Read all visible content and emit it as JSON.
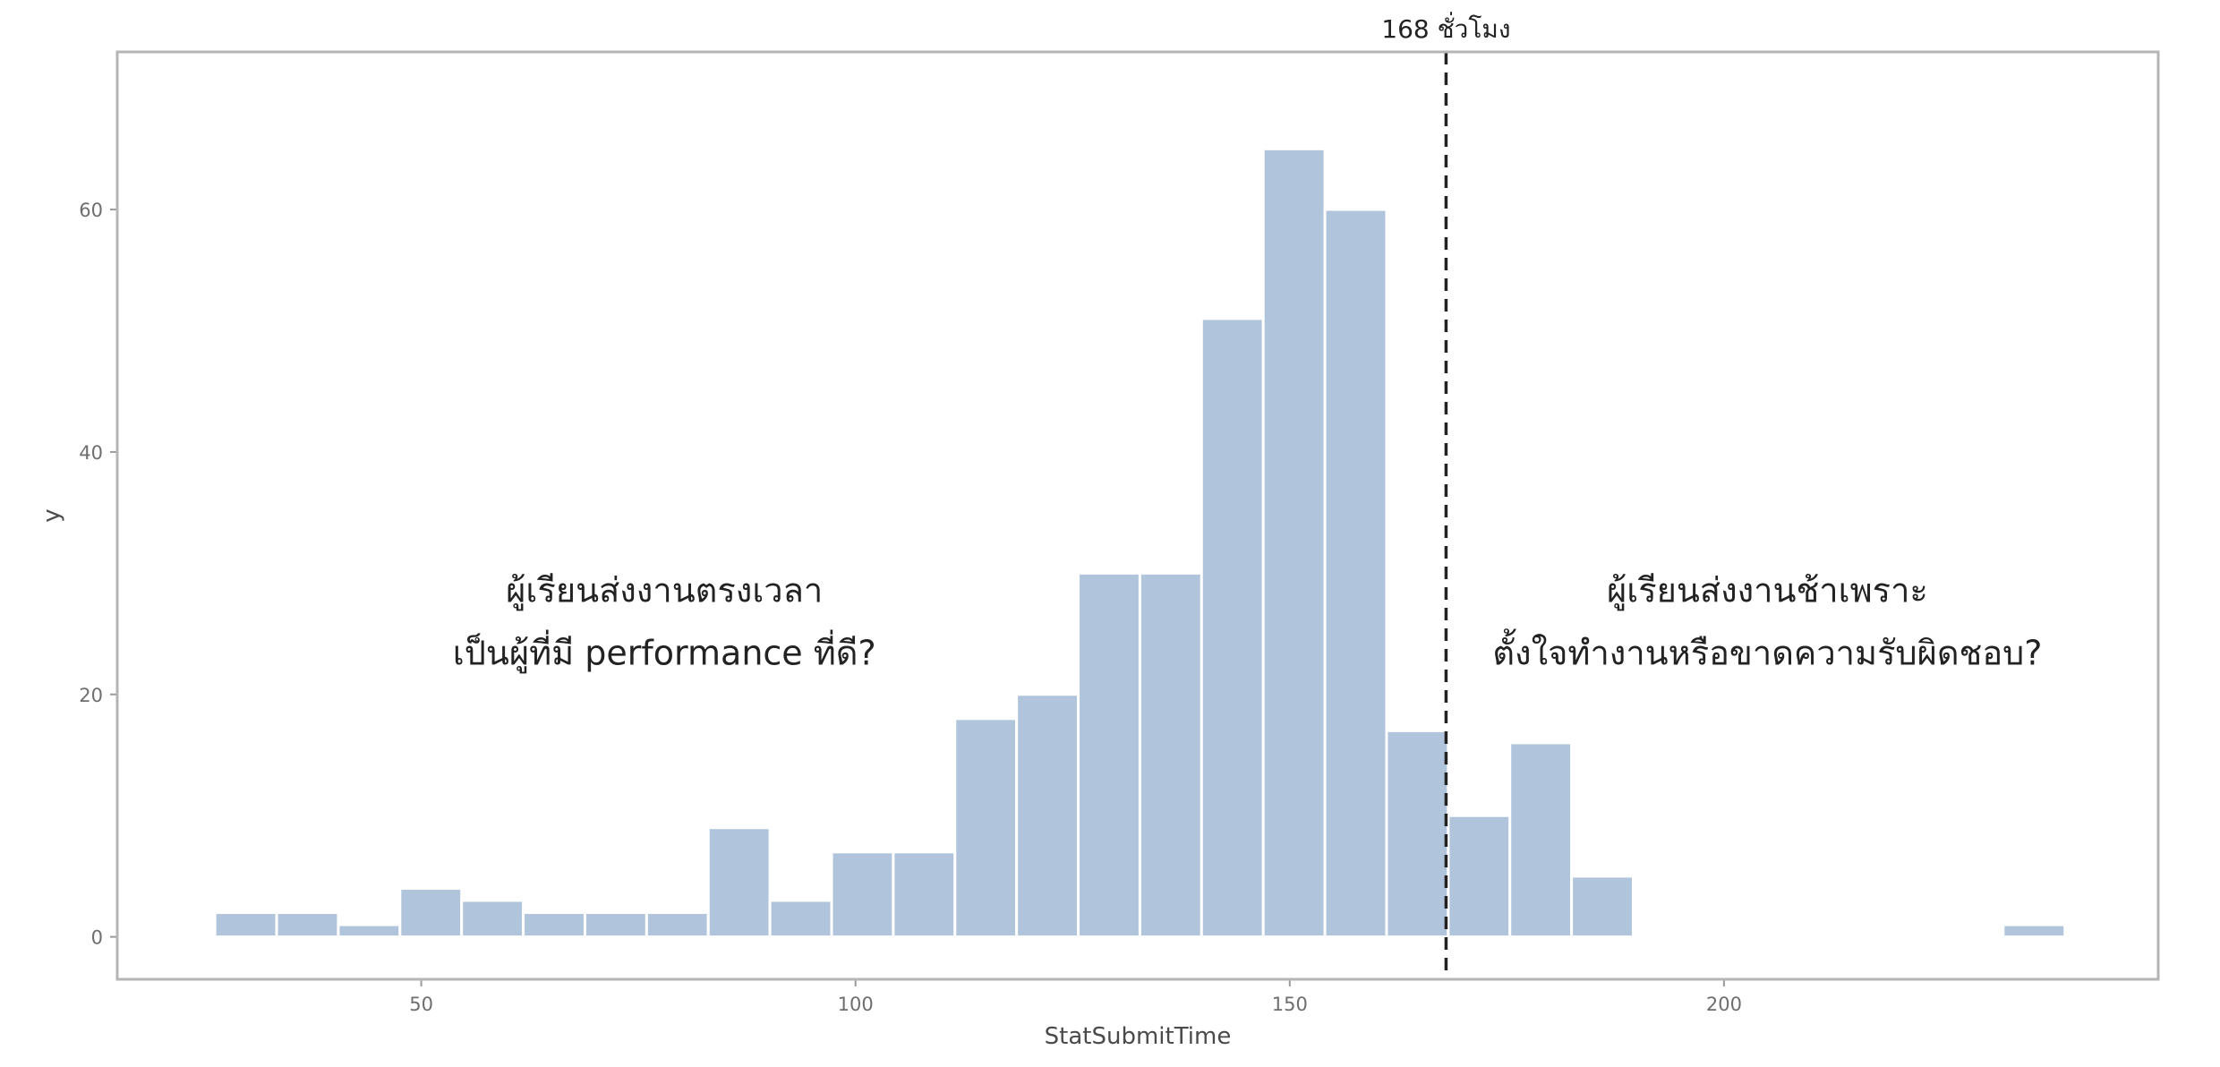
{
  "chart_data": {
    "type": "bar",
    "xlabel": "StatSubmitTime",
    "ylabel": "y",
    "xlim": [
      15,
      250
    ],
    "ylim": [
      -3.5,
      73
    ],
    "x_ticks": [
      50,
      100,
      150,
      200
    ],
    "y_ticks": [
      0,
      20,
      40,
      60
    ],
    "bin_width": 7.1,
    "bins": [
      {
        "x": 29.8,
        "count": 2
      },
      {
        "x": 36.9,
        "count": 2
      },
      {
        "x": 44.0,
        "count": 1
      },
      {
        "x": 51.1,
        "count": 4
      },
      {
        "x": 58.2,
        "count": 3
      },
      {
        "x": 65.3,
        "count": 2
      },
      {
        "x": 72.4,
        "count": 2
      },
      {
        "x": 79.5,
        "count": 2
      },
      {
        "x": 86.6,
        "count": 9
      },
      {
        "x": 93.7,
        "count": 3
      },
      {
        "x": 100.8,
        "count": 7
      },
      {
        "x": 107.9,
        "count": 7
      },
      {
        "x": 115.0,
        "count": 18
      },
      {
        "x": 122.1,
        "count": 20
      },
      {
        "x": 129.2,
        "count": 30
      },
      {
        "x": 136.3,
        "count": 30
      },
      {
        "x": 143.4,
        "count": 51
      },
      {
        "x": 150.5,
        "count": 65
      },
      {
        "x": 157.6,
        "count": 60
      },
      {
        "x": 164.7,
        "count": 17
      },
      {
        "x": 171.8,
        "count": 10
      },
      {
        "x": 178.9,
        "count": 16
      },
      {
        "x": 186.0,
        "count": 5
      },
      {
        "x": 235.7,
        "count": 1
      }
    ],
    "bar_color": "#b0c4db",
    "grid": false,
    "vline": {
      "x": 168,
      "label": "168 ชั่วโมง"
    },
    "annotations": [
      {
        "x": 78,
        "y": 26,
        "lines": [
          "ผู้เรียนส่งงานตรงเวลา",
          "เป็นผู้ที่มี performance ที่ดี?"
        ]
      },
      {
        "x": 205,
        "y": 26,
        "lines": [
          "ผู้เรียนส่งงานช้าเพราะ",
          "ตั้งใจทำงานหรือขาดความรับผิดชอบ?"
        ]
      }
    ]
  }
}
